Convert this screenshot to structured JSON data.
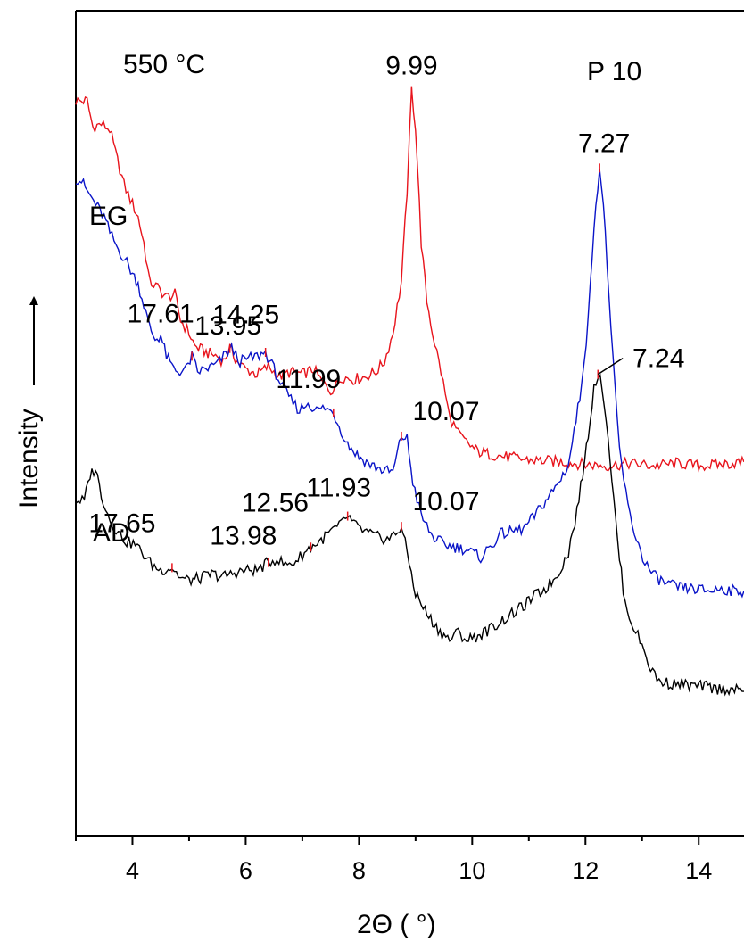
{
  "chart_data": {
    "type": "line",
    "title": "P 10",
    "xlabel": "2Θ ( °)",
    "ylabel": "Intensity",
    "xlim": [
      3.0,
      14.8
    ],
    "xticks": [
      4,
      6,
      8,
      10,
      12,
      14
    ],
    "xtick_labels": [
      "4",
      "6",
      "8",
      "10",
      "12",
      "14"
    ],
    "yticks_shown": false,
    "grid": false,
    "series": [
      {
        "name": "550 °C",
        "color": "#e8141c",
        "points": [
          [
            3.0,
            870
          ],
          [
            3.2,
            870
          ],
          [
            3.3,
            850
          ],
          [
            3.45,
            852
          ],
          [
            3.6,
            848
          ],
          [
            3.7,
            830
          ],
          [
            3.85,
            805
          ],
          [
            4.0,
            790
          ],
          [
            4.1,
            780
          ],
          [
            4.2,
            760
          ],
          [
            4.3,
            730
          ],
          [
            4.45,
            725
          ],
          [
            4.6,
            718
          ],
          [
            4.75,
            720
          ],
          [
            4.85,
            700
          ],
          [
            5.0,
            690
          ],
          [
            5.1,
            680
          ],
          [
            5.3,
            675
          ],
          [
            5.5,
            672
          ],
          [
            5.6,
            668
          ],
          [
            5.72,
            678
          ],
          [
            5.85,
            668
          ],
          [
            6.0,
            662
          ],
          [
            6.2,
            658
          ],
          [
            6.4,
            664
          ],
          [
            6.6,
            656
          ],
          [
            6.8,
            660
          ],
          [
            7.0,
            658
          ],
          [
            7.2,
            662
          ],
          [
            7.35,
            652
          ],
          [
            7.5,
            645
          ],
          [
            7.6,
            650
          ],
          [
            7.7,
            656
          ],
          [
            7.9,
            654
          ],
          [
            8.1,
            656
          ],
          [
            8.3,
            660
          ],
          [
            8.45,
            668
          ],
          [
            8.6,
            690
          ],
          [
            8.75,
            730
          ],
          [
            8.85,
            800
          ],
          [
            8.93,
            878
          ],
          [
            9.0,
            850
          ],
          [
            9.1,
            760
          ],
          [
            9.2,
            715
          ],
          [
            9.3,
            690
          ],
          [
            9.45,
            660
          ],
          [
            9.6,
            625
          ],
          [
            9.75,
            612
          ],
          [
            9.9,
            605
          ],
          [
            10.1,
            598
          ],
          [
            10.3,
            596
          ],
          [
            10.6,
            594
          ],
          [
            10.9,
            592
          ],
          [
            11.2,
            591
          ],
          [
            11.6,
            590
          ],
          [
            12.0,
            588
          ],
          [
            12.4,
            587
          ],
          [
            12.8,
            589
          ],
          [
            13.2,
            587
          ],
          [
            13.6,
            589
          ],
          [
            14.0,
            587
          ],
          [
            14.4,
            588
          ],
          [
            14.8,
            590
          ]
        ]
      },
      {
        "name": "EG",
        "color": "#0a14c8",
        "points": [
          [
            3.0,
            810
          ],
          [
            3.1,
            808
          ],
          [
            3.2,
            800
          ],
          [
            3.35,
            790
          ],
          [
            3.5,
            780
          ],
          [
            3.6,
            768
          ],
          [
            3.75,
            755
          ],
          [
            3.9,
            745
          ],
          [
            4.0,
            736
          ],
          [
            4.1,
            728
          ],
          [
            4.2,
            712
          ],
          [
            4.3,
            695
          ],
          [
            4.4,
            685
          ],
          [
            4.5,
            688
          ],
          [
            4.6,
            672
          ],
          [
            4.7,
            664
          ],
          [
            4.8,
            660
          ],
          [
            4.95,
            662
          ],
          [
            5.05,
            672
          ],
          [
            5.15,
            660
          ],
          [
            5.3,
            662
          ],
          [
            5.5,
            666
          ],
          [
            5.65,
            674
          ],
          [
            5.75,
            678
          ],
          [
            5.9,
            668
          ],
          [
            6.05,
            670
          ],
          [
            6.2,
            672
          ],
          [
            6.35,
            675
          ],
          [
            6.5,
            662
          ],
          [
            6.65,
            648
          ],
          [
            6.8,
            638
          ],
          [
            6.95,
            630
          ],
          [
            7.1,
            636
          ],
          [
            7.25,
            630
          ],
          [
            7.4,
            632
          ],
          [
            7.55,
            628
          ],
          [
            7.65,
            618
          ],
          [
            7.8,
            604
          ],
          [
            8.0,
            594
          ],
          [
            8.2,
            588
          ],
          [
            8.4,
            584
          ],
          [
            8.6,
            582
          ],
          [
            8.75,
            610
          ],
          [
            8.85,
            608
          ],
          [
            8.95,
            575
          ],
          [
            9.1,
            548
          ],
          [
            9.3,
            532
          ],
          [
            9.5,
            526
          ],
          [
            9.7,
            524
          ],
          [
            9.9,
            522
          ],
          [
            10.15,
            516
          ],
          [
            10.35,
            526
          ],
          [
            10.5,
            534
          ],
          [
            10.7,
            536
          ],
          [
            10.9,
            538
          ],
          [
            11.1,
            548
          ],
          [
            11.3,
            560
          ],
          [
            11.5,
            572
          ],
          [
            11.7,
            588
          ],
          [
            11.9,
            640
          ],
          [
            12.05,
            700
          ],
          [
            12.15,
            775
          ],
          [
            12.25,
            818
          ],
          [
            12.35,
            770
          ],
          [
            12.45,
            690
          ],
          [
            12.6,
            600
          ],
          [
            12.75,
            555
          ],
          [
            12.9,
            530
          ],
          [
            13.05,
            512
          ],
          [
            13.2,
            502
          ],
          [
            13.4,
            496
          ],
          [
            13.6,
            493
          ],
          [
            13.8,
            492
          ],
          [
            14.0,
            491
          ],
          [
            14.2,
            490
          ],
          [
            14.4,
            492
          ],
          [
            14.6,
            490
          ],
          [
            14.8,
            490
          ]
        ]
      },
      {
        "name": "AD",
        "color": "#000000",
        "points": [
          [
            3.0,
            560
          ],
          [
            3.15,
            560
          ],
          [
            3.25,
            580
          ],
          [
            3.35,
            585
          ],
          [
            3.45,
            565
          ],
          [
            3.6,
            545
          ],
          [
            3.75,
            535
          ],
          [
            3.9,
            528
          ],
          [
            4.05,
            526
          ],
          [
            4.2,
            518
          ],
          [
            4.35,
            510
          ],
          [
            4.5,
            506
          ],
          [
            4.7,
            508
          ],
          [
            4.85,
            500
          ],
          [
            5.0,
            498
          ],
          [
            5.2,
            500
          ],
          [
            5.4,
            503
          ],
          [
            5.6,
            501
          ],
          [
            5.8,
            504
          ],
          [
            6.0,
            506
          ],
          [
            6.2,
            506
          ],
          [
            6.4,
            512
          ],
          [
            6.55,
            515
          ],
          [
            6.7,
            510
          ],
          [
            6.85,
            512
          ],
          [
            7.0,
            518
          ],
          [
            7.15,
            524
          ],
          [
            7.3,
            528
          ],
          [
            7.5,
            536
          ],
          [
            7.65,
            540
          ],
          [
            7.8,
            548
          ],
          [
            7.95,
            540
          ],
          [
            8.1,
            536
          ],
          [
            8.3,
            532
          ],
          [
            8.5,
            530
          ],
          [
            8.65,
            534
          ],
          [
            8.75,
            540
          ],
          [
            8.85,
            520
          ],
          [
            9.0,
            488
          ],
          [
            9.2,
            472
          ],
          [
            9.4,
            460
          ],
          [
            9.6,
            452
          ],
          [
            9.75,
            458
          ],
          [
            9.9,
            452
          ],
          [
            10.1,
            455
          ],
          [
            10.3,
            460
          ],
          [
            10.5,
            466
          ],
          [
            10.7,
            472
          ],
          [
            10.9,
            478
          ],
          [
            11.1,
            486
          ],
          [
            11.3,
            492
          ],
          [
            11.5,
            502
          ],
          [
            11.7,
            520
          ],
          [
            11.85,
            552
          ],
          [
            11.95,
            580
          ],
          [
            12.05,
            612
          ],
          [
            12.15,
            648
          ],
          [
            12.22,
            658
          ],
          [
            12.3,
            648
          ],
          [
            12.4,
            610
          ],
          [
            12.5,
            560
          ],
          [
            12.6,
            515
          ],
          [
            12.7,
            480
          ],
          [
            12.85,
            462
          ],
          [
            13.0,
            448
          ],
          [
            13.15,
            430
          ],
          [
            13.3,
            420
          ],
          [
            13.5,
            418
          ],
          [
            13.7,
            418
          ],
          [
            13.9,
            416
          ],
          [
            14.1,
            416
          ],
          [
            14.3,
            414
          ],
          [
            14.5,
            414
          ],
          [
            14.8,
            412
          ]
        ]
      }
    ],
    "peak_labels": [
      {
        "series": "550 °C",
        "x": 8.93,
        "label": "9.99"
      },
      {
        "series": "550 °C",
        "x": 5.72,
        "label": "14.25"
      },
      {
        "series": "EG",
        "x": 12.25,
        "label": "7.27"
      },
      {
        "series": "EG",
        "x": 5.05,
        "label": "17.61"
      },
      {
        "series": "EG",
        "x": 6.35,
        "label": "13.95"
      },
      {
        "series": "EG",
        "x": 7.55,
        "label": "11.99"
      },
      {
        "series": "EG",
        "x": 8.75,
        "label": "10.07"
      },
      {
        "series": "AD",
        "x": 12.22,
        "label": "7.24"
      },
      {
        "series": "AD",
        "x": 4.7,
        "label": "17.65"
      },
      {
        "series": "AD",
        "x": 6.4,
        "label": "13.98"
      },
      {
        "series": "AD",
        "x": 7.15,
        "label": "12.56"
      },
      {
        "series": "AD",
        "x": 7.8,
        "label": "11.93"
      },
      {
        "series": "AD",
        "x": 8.75,
        "label": "10.07"
      }
    ]
  }
}
